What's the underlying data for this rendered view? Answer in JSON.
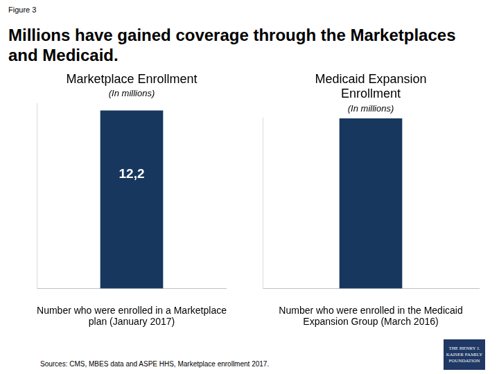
{
  "figure_label": "Figure 3",
  "title": "Millions have gained coverage through the Marketplaces and Medicaid.",
  "source": "Sources: CMS, MBES data and ASPE HHS, Marketplace enrollment 2017.",
  "logo": "THE HENRY J. KAISER FAMILY FOUNDATION",
  "chart_data": [
    {
      "type": "bar",
      "title": "Marketplace Enrollment",
      "subtitle": "(In millions)",
      "categories": [
        "Number who were enrolled in a Marketplace plan (January 2017)"
      ],
      "values": [
        12.2
      ],
      "value_labels": [
        "12,2"
      ],
      "color": "#17375e",
      "ylim": [
        0,
        12.7
      ],
      "grid": false,
      "data_labels": true,
      "tick_labels": "x"
    },
    {
      "type": "bar",
      "title": "Medicaid Expansion Enrollment",
      "subtitle": "(In millions)",
      "categories": [
        "Number who were enrolled in the Medicaid Expansion Group (March 2016)"
      ],
      "values": [
        12.7
      ],
      "color": "#17375e",
      "ylim": [
        0,
        12.7
      ],
      "grid": false,
      "data_labels": false,
      "tick_labels": "x"
    }
  ]
}
